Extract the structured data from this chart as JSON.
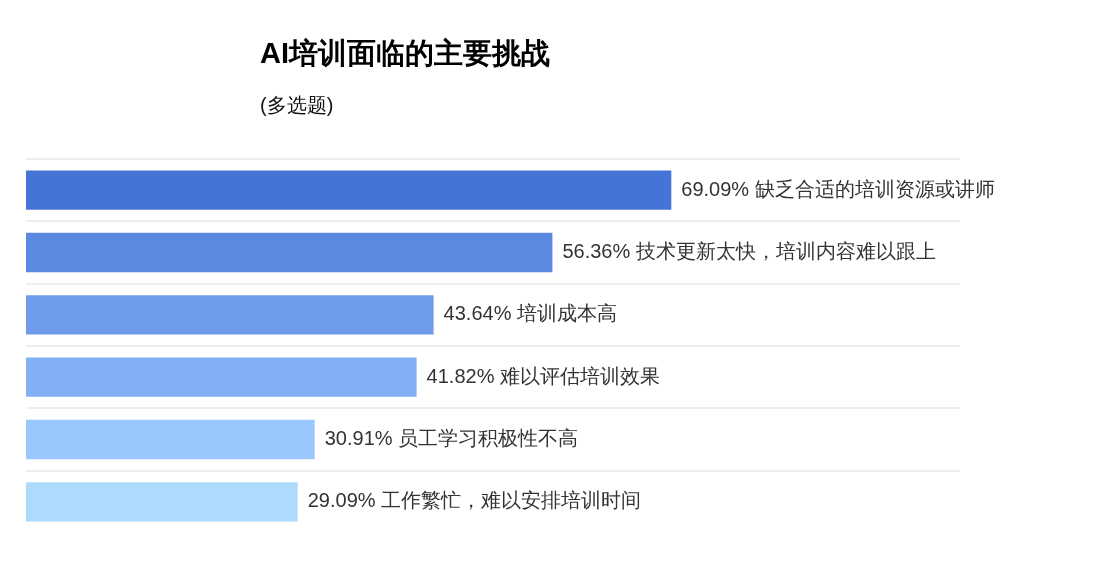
{
  "chart_data": {
    "type": "bar",
    "orientation": "horizontal",
    "title": "AI培训面临的主要挑战",
    "subtitle": "(多选题)",
    "categories": [
      "缺乏合适的培训资源或讲师",
      "技术更新太快，培训内容难以跟上",
      "培训成本高",
      "难以评估培训效果",
      "员工学习积极性不高",
      "工作繁忙，难以安排培训时间"
    ],
    "values": [
      69.09,
      56.36,
      43.64,
      41.82,
      30.91,
      29.09
    ],
    "colors": [
      "#4574d6",
      "#5b88e0",
      "#6f9cea",
      "#83b0f4",
      "#99c7fe",
      "#addbfe"
    ],
    "value_labels": [
      "69.09%",
      "56.36%",
      "43.64%",
      "41.82%",
      "30.91%",
      "29.09%"
    ],
    "xlim": [
      0,
      100
    ],
    "grid": "y",
    "tick_labels": false
  }
}
